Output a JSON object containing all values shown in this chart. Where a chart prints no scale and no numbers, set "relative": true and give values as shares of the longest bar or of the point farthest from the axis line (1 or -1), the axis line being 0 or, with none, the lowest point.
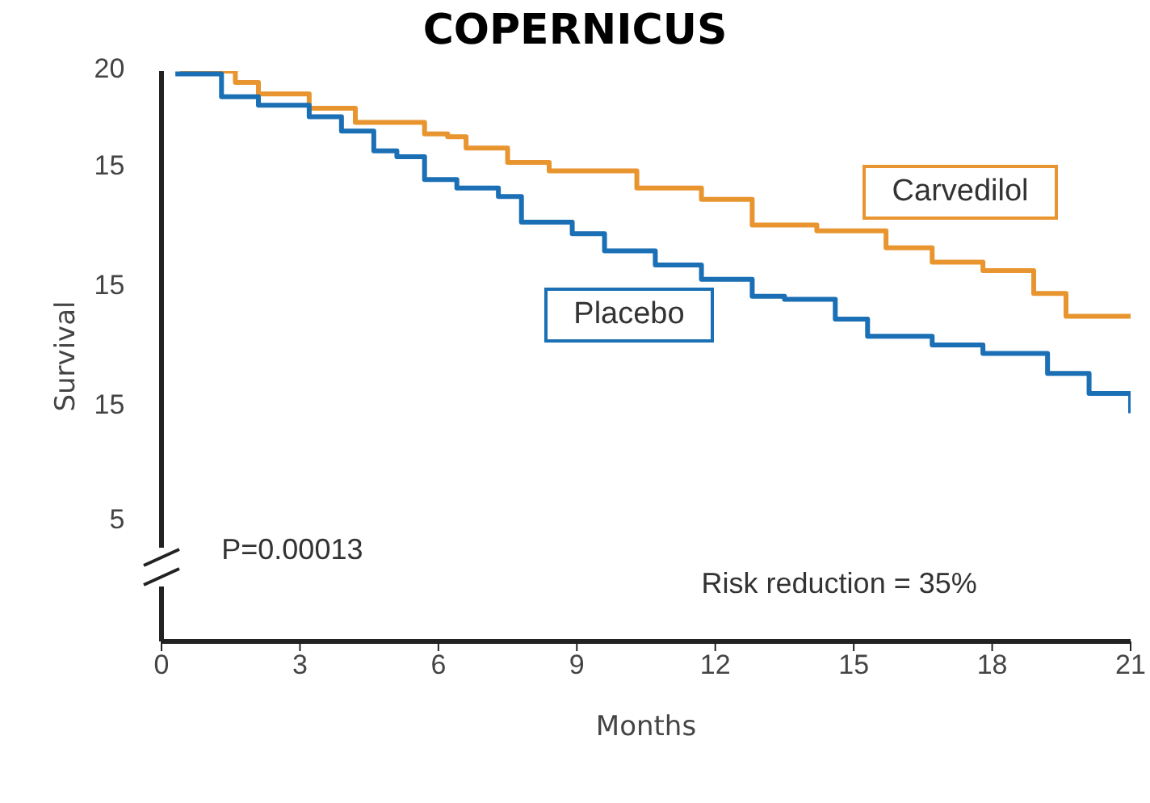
{
  "chart_data": {
    "type": "step",
    "title": "COPERNICUS",
    "xlabel": "Months",
    "ylabel": "Survival",
    "relative": true,
    "annotations": [
      "P=0.00013",
      "Risk reduction = 35%",
      "20",
      "15",
      "15",
      "15",
      "5"
    ],
    "xlim": [
      0,
      21
    ],
    "xticks": [
      0,
      3,
      6,
      9,
      12,
      15,
      18,
      21
    ],
    "grid": false,
    "legend": false,
    "marker": "none",
    "line_style": "solid",
    "series": [
      {
        "name": "Carvedilol",
        "color": "#e8952f",
        "x": [
          0.4,
          1.6,
          2.1,
          3.2,
          4.2,
          5.7,
          6.2,
          6.6,
          7.5,
          8.4,
          9.4,
          10.3,
          11.7,
          12.8,
          14.2,
          15.7,
          16.7,
          17.8,
          18.9,
          19.6,
          21
        ],
        "values": [
          1.0,
          0.98,
          0.96,
          0.935,
          0.91,
          0.89,
          0.885,
          0.865,
          0.84,
          0.825,
          0.825,
          0.795,
          0.775,
          0.73,
          0.72,
          0.69,
          0.665,
          0.65,
          0.61,
          0.57,
          0.57
        ]
      },
      {
        "name": "Placebo",
        "color": "#1a6fb5",
        "x": [
          0.3,
          1.3,
          2.1,
          3.2,
          3.9,
          4.6,
          5.1,
          5.7,
          6.4,
          7.3,
          7.8,
          8.9,
          9.6,
          10.7,
          11.7,
          12.8,
          13.5,
          14.6,
          15.3,
          16.7,
          17.8,
          19.2,
          20.1,
          21
        ],
        "values": [
          0.995,
          0.955,
          0.94,
          0.92,
          0.895,
          0.86,
          0.85,
          0.81,
          0.795,
          0.78,
          0.735,
          0.715,
          0.685,
          0.66,
          0.635,
          0.605,
          0.6,
          0.565,
          0.535,
          0.52,
          0.505,
          0.47,
          0.435,
          0.4
        ]
      }
    ]
  }
}
